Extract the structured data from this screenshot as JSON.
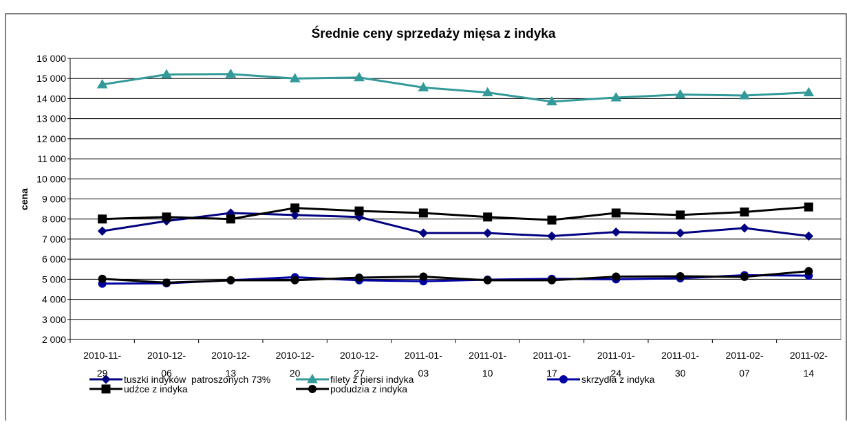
{
  "chart_data": {
    "type": "line",
    "title": "Średnie ceny sprzedaży mięsa z indyka",
    "y_label": "cena",
    "categories": [
      "2010-11-29",
      "2010-12-06",
      "2010-12-13",
      "2010-12-20",
      "2010-12-27",
      "2011-01-03",
      "2011-01-10",
      "2011-01-17",
      "2011-01-24",
      "2011-01-30",
      "2011-02-07",
      "2011-02-14"
    ],
    "ylim": [
      2000,
      16000
    ],
    "yticks": [
      {
        "value": 2000,
        "label": "2 000"
      },
      {
        "value": 3000,
        "label": "3 000"
      },
      {
        "value": 4000,
        "label": "4 000"
      },
      {
        "value": 5000,
        "label": "5 000"
      },
      {
        "value": 6000,
        "label": "6 000"
      },
      {
        "value": 7000,
        "label": "7 000"
      },
      {
        "value": 8000,
        "label": "8 000"
      },
      {
        "value": 9000,
        "label": "9 000"
      },
      {
        "value": 10000,
        "label": "10 000"
      },
      {
        "value": 11000,
        "label": "11 000"
      },
      {
        "value": 12000,
        "label": "12 000"
      },
      {
        "value": 13000,
        "label": "13 000"
      },
      {
        "value": 14000,
        "label": "14 000"
      },
      {
        "value": 15000,
        "label": "15 000"
      },
      {
        "value": 16000,
        "label": "16 000"
      }
    ],
    "grid": true,
    "series": [
      {
        "name": "tuszki indyków  patroszonych 73%",
        "color": "#000080",
        "marker": "diamond",
        "values": [
          7400,
          7900,
          8300,
          8200,
          8100,
          7300,
          7300,
          7150,
          7350,
          7300,
          7550,
          7150
        ]
      },
      {
        "name": "filety z piersi indyka",
        "color": "#339999",
        "marker": "triangle",
        "values": [
          14700,
          15200,
          15220,
          15000,
          15050,
          14550,
          14300,
          13850,
          14050,
          14200,
          14150,
          14300
        ]
      },
      {
        "name": "skrzydła z indyka",
        "color": "#0000a0",
        "marker": "circle",
        "values": [
          4780,
          4800,
          4950,
          5100,
          4950,
          4900,
          4980,
          5020,
          5000,
          5050,
          5200,
          5180
        ]
      },
      {
        "name": "udźce z indyka",
        "color": "#000000",
        "marker": "square",
        "values": [
          8000,
          8100,
          8000,
          8550,
          8400,
          8300,
          8100,
          7950,
          8300,
          8200,
          8350,
          8600
        ]
      },
      {
        "name": "podudzia z indyka",
        "color": "#000000",
        "marker": "circle",
        "values": [
          5020,
          4830,
          4950,
          4950,
          5080,
          5130,
          4950,
          4950,
          5130,
          5150,
          5120,
          5400
        ]
      }
    ]
  }
}
